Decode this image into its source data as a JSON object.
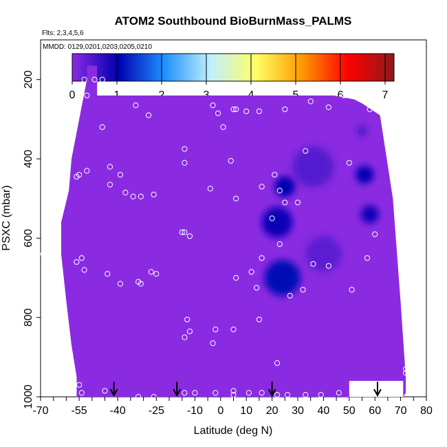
{
  "chart_data": {
    "type": "heatmap",
    "title": "ATOM2 Southbound BioBurnMass_PALMS",
    "subtitle_flights": "Flts: 2,3,4,5,6",
    "subtitle_dates": "MMDD: 0129,0201,0203,0205,0210",
    "xlabel": "Latitude (deg N)",
    "ylabel": "PSXC (mbar)",
    "xlim": [
      -70,
      80
    ],
    "ylim": [
      1000,
      100
    ],
    "y_reversed": true,
    "x_ticks": [
      -70,
      -55,
      -40,
      -25,
      -10,
      0,
      10,
      20,
      30,
      40,
      50,
      60,
      70,
      80
    ],
    "y_ticks": [
      200,
      400,
      600,
      800,
      1000
    ],
    "colorbar": {
      "ticks": [
        0,
        1,
        2,
        3,
        4,
        5,
        6,
        7
      ],
      "range": [
        0,
        7.2
      ],
      "colors": [
        "#8a2be2",
        "#0000b0",
        "#1e90ff",
        "#bfefff",
        "#ffff66",
        "#ff9900",
        "#ff0000",
        "#8b1a1a"
      ],
      "placement": "top"
    },
    "background_color": "#8a2be2",
    "envelope": [
      [
        -52,
        165
      ],
      [
        -48,
        165
      ],
      [
        -48,
        240
      ],
      [
        44,
        240
      ],
      [
        52,
        250
      ],
      [
        55,
        260
      ],
      [
        62,
        290
      ],
      [
        67,
        500
      ],
      [
        70,
        760
      ],
      [
        72,
        950
      ],
      [
        72,
        990
      ],
      [
        71,
        1000
      ],
      [
        -56,
        1000
      ],
      [
        -56,
        950
      ],
      [
        -58,
        870
      ],
      [
        -60,
        760
      ],
      [
        -62,
        640
      ],
      [
        -62,
        560
      ],
      [
        -59,
        480
      ],
      [
        -58,
        400
      ],
      [
        -55,
        300
      ],
      [
        -52,
        200
      ]
    ],
    "cutout": [
      [
        50,
        1000
      ],
      [
        50,
        960
      ],
      [
        71,
        960
      ],
      [
        71,
        1000
      ]
    ],
    "high_regions": [
      {
        "lat": 25,
        "p": 470,
        "width_lat": 8,
        "width_p": 60,
        "value": 1.0
      },
      {
        "lat": 22,
        "p": 560,
        "width_lat": 12,
        "width_p": 100,
        "value": 0.9
      },
      {
        "lat": 24,
        "p": 700,
        "width_lat": 14,
        "width_p": 90,
        "value": 1.1
      },
      {
        "lat": 56,
        "p": 440,
        "width_lat": 7,
        "width_p": 90,
        "value": 1.0
      },
      {
        "lat": 58,
        "p": 540,
        "width_lat": 7,
        "width_p": 80,
        "value": 0.9
      },
      {
        "lat": 55,
        "p": 330,
        "width_lat": 4,
        "width_p": 40,
        "value": 0.5
      },
      {
        "lat": 36,
        "p": 420,
        "width_lat": 16,
        "width_p": 50,
        "value": 0.4
      },
      {
        "lat": 40,
        "p": 640,
        "width_lat": 14,
        "width_p": 90,
        "value": 0.35
      }
    ],
    "sample_points": [
      [
        -53,
        200
      ],
      [
        -49,
        200
      ],
      [
        -46,
        200
      ],
      [
        -52,
        240
      ],
      [
        -46,
        320
      ],
      [
        -33,
        265
      ],
      [
        -28,
        290
      ],
      [
        -43,
        420
      ],
      [
        -52,
        430
      ],
      [
        -55,
        440
      ],
      [
        -56,
        445
      ],
      [
        -39,
        440
      ],
      [
        -43,
        465
      ],
      [
        -37,
        485
      ],
      [
        -34,
        495
      ],
      [
        -31,
        495
      ],
      [
        -26,
        490
      ],
      [
        -69,
        640
      ],
      [
        -54,
        650
      ],
      [
        -56,
        660
      ],
      [
        -53,
        680
      ],
      [
        -44,
        690
      ],
      [
        -39,
        715
      ],
      [
        -32,
        710
      ],
      [
        -31,
        715
      ],
      [
        -27,
        685
      ],
      [
        -25,
        690
      ],
      [
        -15,
        585
      ],
      [
        -14,
        585
      ],
      [
        -12,
        595
      ],
      [
        -14,
        220
      ],
      [
        -3,
        265
      ],
      [
        -1,
        285
      ],
      [
        1,
        320
      ],
      [
        5,
        275
      ],
      [
        6,
        275
      ],
      [
        10,
        280
      ],
      [
        15,
        280
      ],
      [
        25,
        275
      ],
      [
        35,
        255
      ],
      [
        42,
        270
      ],
      [
        48,
        240
      ],
      [
        58,
        275
      ],
      [
        -14,
        375
      ],
      [
        -14,
        410
      ],
      [
        -4,
        475
      ],
      [
        4,
        405
      ],
      [
        6,
        500
      ],
      [
        16,
        470
      ],
      [
        21,
        440
      ],
      [
        23,
        480
      ],
      [
        25,
        510
      ],
      [
        30,
        510
      ],
      [
        33,
        380
      ],
      [
        50,
        410
      ],
      [
        60,
        590
      ],
      [
        57,
        650
      ],
      [
        36,
        665
      ],
      [
        42,
        670
      ],
      [
        51,
        730
      ],
      [
        6,
        700
      ],
      [
        12,
        685
      ],
      [
        14,
        725
      ],
      [
        20,
        550
      ],
      [
        23,
        615
      ],
      [
        27,
        745
      ],
      [
        32,
        730
      ],
      [
        16,
        650
      ],
      [
        -13,
        805
      ],
      [
        -12,
        835
      ],
      [
        -14,
        850
      ],
      [
        -2,
        830
      ],
      [
        -3,
        865
      ],
      [
        5,
        830
      ],
      [
        15,
        805
      ],
      [
        22,
        915
      ],
      [
        72,
        940
      ],
      [
        -55,
        970
      ],
      [
        -54,
        990
      ],
      [
        -45,
        985
      ],
      [
        -32,
        1000
      ],
      [
        -26,
        1000
      ],
      [
        -14,
        990
      ],
      [
        -10,
        990
      ],
      [
        -2,
        990
      ],
      [
        5,
        995
      ],
      [
        5,
        985
      ],
      [
        11,
        990
      ],
      [
        16,
        990
      ],
      [
        22,
        995
      ],
      [
        26,
        995
      ],
      [
        33,
        995
      ],
      [
        39,
        995
      ],
      [
        46,
        990
      ],
      [
        72,
        930
      ]
    ],
    "arrows_lat": [
      -41.5,
      -17,
      20,
      61
    ]
  }
}
